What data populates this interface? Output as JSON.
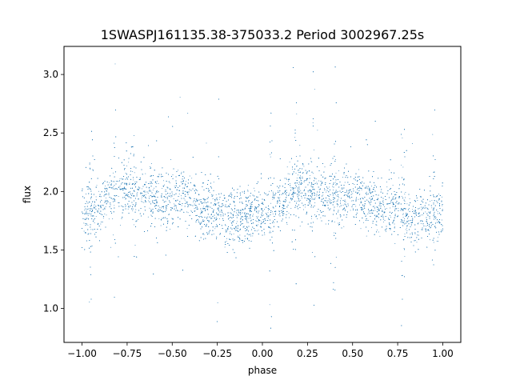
{
  "chart_data": {
    "type": "scatter",
    "title": "1SWASPJ161135.38-375033.2 Period 3002967.25s",
    "xlabel": "phase",
    "ylabel": "flux",
    "xlim": [
      -1.1,
      1.1
    ],
    "ylim": [
      0.71,
      3.24
    ],
    "xticks": [
      "−1.00",
      "−0.75",
      "−0.50",
      "−0.25",
      "0.00",
      "0.25",
      "0.50",
      "0.75",
      "1.00"
    ],
    "xtick_values": [
      -1.0,
      -0.75,
      -0.5,
      -0.25,
      0.0,
      0.25,
      0.5,
      0.75,
      1.0
    ],
    "yticks": [
      "1.0",
      "1.5",
      "2.0",
      "2.5",
      "3.0"
    ],
    "ytick_values": [
      1.0,
      1.5,
      2.0,
      2.5,
      3.0
    ],
    "grid": false,
    "marker_color": "#1f77b4",
    "series": [
      {
        "description_key": "phase-folded light curve, points repeated over two cycles",
        "phase_range": [
          -1.0,
          1.0
        ],
        "approx_point_count": 14000,
        "mean_flux_profile": {
          "phase": [
            -1.0,
            -0.95,
            -0.9,
            -0.85,
            -0.8,
            -0.75,
            -0.7,
            -0.65,
            -0.6,
            -0.55,
            -0.5,
            -0.45,
            -0.4,
            -0.35,
            -0.3,
            -0.25,
            -0.2,
            -0.15,
            -0.1,
            -0.05,
            0.0,
            0.05,
            0.1,
            0.15,
            0.2,
            0.25,
            0.3,
            0.35,
            0.4,
            0.45,
            0.5,
            0.55,
            0.6,
            0.65,
            0.7,
            0.75,
            0.8,
            0.85,
            0.9,
            0.95,
            1.0
          ],
          "flux": [
            1.82,
            1.8,
            1.9,
            1.98,
            2.02,
            2.02,
            1.98,
            1.97,
            1.95,
            1.93,
            1.95,
            1.98,
            1.93,
            1.82,
            1.85,
            1.85,
            1.78,
            1.75,
            1.8,
            1.8,
            1.82,
            1.8,
            1.9,
            1.98,
            2.02,
            2.02,
            1.98,
            1.97,
            1.95,
            1.93,
            1.95,
            1.98,
            1.93,
            1.82,
            1.85,
            1.85,
            1.78,
            1.75,
            1.8,
            1.8,
            1.82
          ]
        },
        "scatter_sigma": 0.12,
        "min_flux": 0.83,
        "max_flux": 3.1
      }
    ]
  }
}
